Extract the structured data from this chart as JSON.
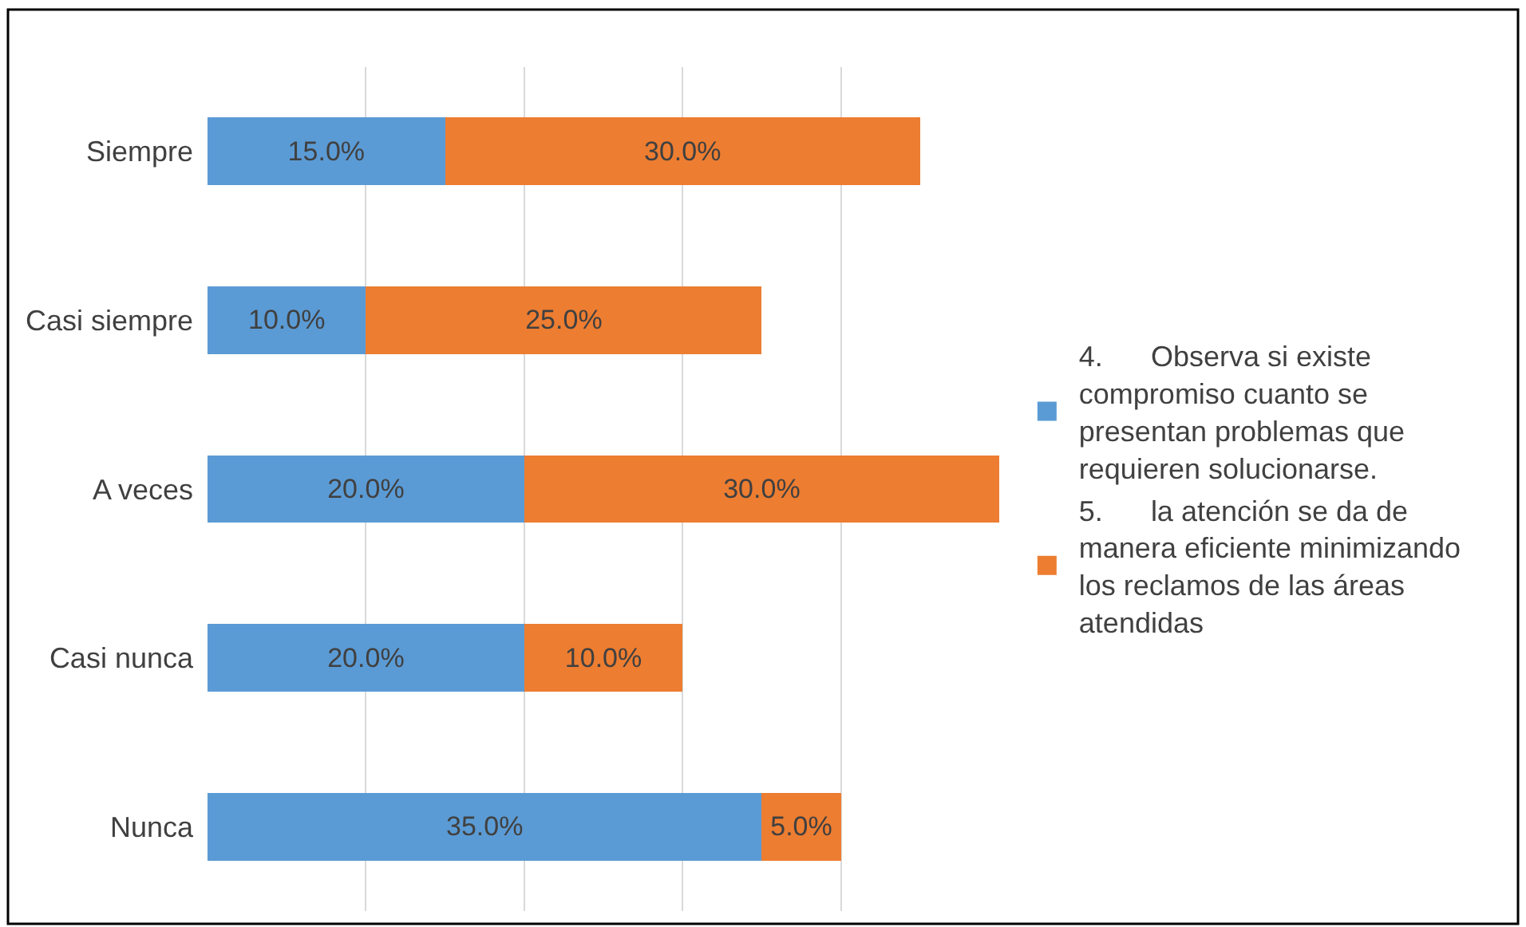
{
  "chart_data": {
    "type": "bar",
    "orientation": "horizontal",
    "stacked": true,
    "grid": "x",
    "legend": "right",
    "categories": [
      "Siempre",
      "Casi siempre",
      "A veces",
      "Casi nunca",
      "Nunca"
    ],
    "series": [
      {
        "name": "4.      Observa si existe compromiso cuanto se presentan problemas que requieren solucionarse.",
        "color": "#5b9bd5",
        "values": [
          15.0,
          10.0,
          20.0,
          20.0,
          35.0
        ],
        "value_labels": [
          "15.0%",
          "10.0%",
          "20.0%",
          "20.0%",
          "35.0%"
        ]
      },
      {
        "name": "5.      la atención se da de manera eficiente minimizando los reclamos de las áreas atendidas",
        "color": "#ed7d31",
        "values": [
          30.0,
          25.0,
          30.0,
          10.0,
          5.0
        ],
        "value_labels": [
          "30.0%",
          "25.0%",
          "30.0%",
          "10.0%",
          "5.0%"
        ]
      }
    ]
  }
}
